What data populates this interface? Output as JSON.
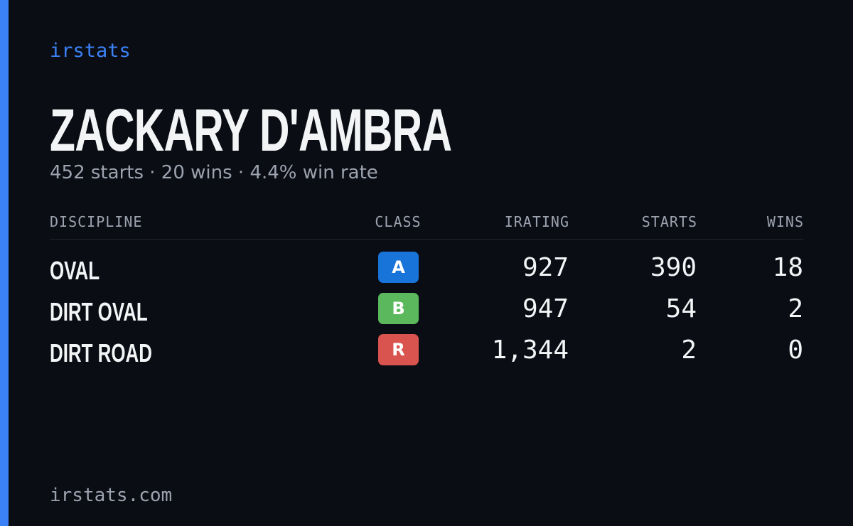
{
  "brand": "irstats",
  "name": "ZACKARY D'AMBRA",
  "summary": "452 starts · 20 wins · 4.4% win rate",
  "table": {
    "headers": [
      "DISCIPLINE",
      "CLASS",
      "IRATING",
      "STARTS",
      "WINS"
    ],
    "rows": [
      {
        "discipline": "OVAL",
        "class": "A",
        "color": "#1874d8",
        "irating": "927",
        "starts": "390",
        "wins": "18"
      },
      {
        "discipline": "DIRT OVAL",
        "class": "B",
        "color": "#5cb85c",
        "irating": "947",
        "starts": "54",
        "wins": "2"
      },
      {
        "discipline": "DIRT ROAD",
        "class": "R",
        "color": "#d9534f",
        "irating": "1,344",
        "starts": "2",
        "wins": "0"
      }
    ]
  },
  "footer": "irstats.com"
}
